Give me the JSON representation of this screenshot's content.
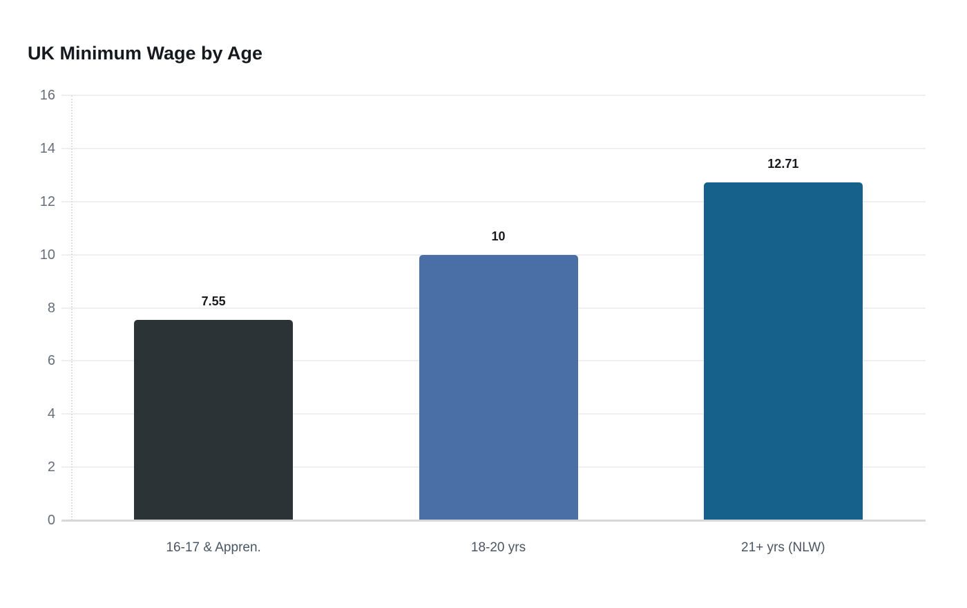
{
  "chart_data": {
    "type": "bar",
    "title": "UK Minimum Wage by Age",
    "categories": [
      "16-17 & Appren.",
      "18-20 yrs",
      "21+ yrs (NLW)"
    ],
    "values": [
      7.55,
      10,
      12.71
    ],
    "value_labels": [
      "7.55",
      "10",
      "12.71"
    ],
    "bar_colors": [
      "#2b3336",
      "#4a6fa6",
      "#16618c"
    ],
    "xlabel": "",
    "ylabel": "",
    "ylim": [
      0,
      16
    ],
    "yticks": [
      0,
      2,
      4,
      6,
      8,
      10,
      12,
      14,
      16
    ],
    "grid": true,
    "legend": false
  },
  "colors": {
    "background": "#ffffff",
    "title": "#16191d",
    "tick_label": "#646e78",
    "x_label": "#4a5563",
    "value_label": "#17191c",
    "gridline": "#efefef",
    "baseline": "#d8d8d8",
    "axis_dotted": "#dcdfe2"
  }
}
